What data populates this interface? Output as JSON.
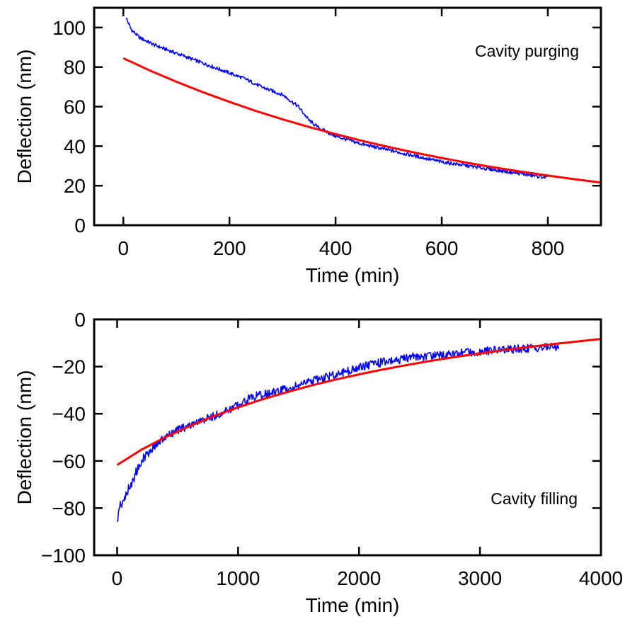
{
  "chart_data": [
    {
      "type": "line",
      "title": "",
      "xlabel": "Time (min)",
      "ylabel": "Deflection (nm)",
      "annotation": "Cavity purging",
      "xlim": [
        -55,
        900
      ],
      "ylim": [
        0,
        110
      ],
      "xticks": [
        0,
        200,
        400,
        600,
        800
      ],
      "yticks": [
        0,
        20,
        40,
        60,
        80,
        100
      ],
      "grid": false,
      "legend": "none",
      "series": [
        {
          "color": "#0000ff",
          "style": "noisy-measurement",
          "x": [
            5,
            15,
            30,
            60,
            100,
            150,
            200,
            230,
            260,
            300,
            330,
            350,
            370,
            400,
            450,
            500,
            550,
            600,
            650,
            700,
            750,
            800
          ],
          "y": [
            105,
            99,
            95,
            91,
            87,
            82,
            77,
            74,
            70,
            66,
            60,
            53,
            49,
            45,
            41,
            38,
            35,
            32,
            30,
            28,
            26,
            24
          ]
        },
        {
          "color": "#ff0000",
          "style": "fit",
          "x": [
            0,
            50,
            100,
            150,
            200,
            250,
            300,
            350,
            400,
            450,
            500,
            550,
            600,
            650,
            700,
            750,
            800,
            850,
            900
          ],
          "y": [
            84.5,
            78.3,
            72.6,
            67.3,
            62.4,
            57.8,
            53.6,
            49.7,
            46.1,
            42.7,
            39.6,
            36.7,
            34.0,
            31.5,
            29.2,
            27.1,
            25.1,
            23.3,
            21.6
          ]
        }
      ]
    },
    {
      "type": "line",
      "title": "",
      "xlabel": "Time (min)",
      "ylabel": "Deflection (nm)",
      "annotation": "Cavity filling",
      "xlim": [
        -190,
        4000
      ],
      "ylim": [
        -100,
        0
      ],
      "xticks": [
        0,
        1000,
        2000,
        3000,
        4000
      ],
      "yticks": [
        -100,
        -80,
        -60,
        -40,
        -20,
        0
      ],
      "grid": false,
      "legend": "none",
      "series": [
        {
          "color": "#0000ff",
          "style": "noisy-measurement",
          "x": [
            0,
            20,
            50,
            100,
            150,
            200,
            300,
            400,
            500,
            700,
            900,
            1050,
            1100,
            1300,
            1500,
            1700,
            1900,
            2100,
            2400,
            2700,
            3000,
            3300,
            3500,
            3650
          ],
          "y": [
            -86,
            -80,
            -77,
            -72,
            -66,
            -60,
            -54,
            -50,
            -47,
            -43,
            -39,
            -35,
            -33,
            -31,
            -28,
            -25,
            -22,
            -19,
            -16.5,
            -15,
            -13.5,
            -12.5,
            -12,
            -11.5
          ]
        },
        {
          "color": "#ff0000",
          "style": "fit",
          "x": [
            0,
            200,
            400,
            600,
            800,
            1000,
            1200,
            1400,
            1600,
            1800,
            2000,
            2200,
            2400,
            2600,
            2800,
            3000,
            3200,
            3400,
            3600,
            3800,
            4000
          ],
          "y": [
            -61.7,
            -55.3,
            -49.9,
            -45.2,
            -41.0,
            -37.3,
            -33.9,
            -30.9,
            -28.1,
            -25.6,
            -23.3,
            -21.2,
            -19.3,
            -17.5,
            -15.9,
            -14.4,
            -13.0,
            -11.7,
            -10.5,
            -9.4,
            -8.3
          ]
        }
      ]
    }
  ]
}
